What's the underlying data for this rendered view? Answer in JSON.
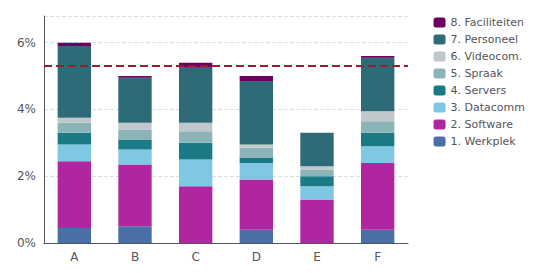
{
  "chart_data": {
    "type": "bar",
    "stacked": true,
    "categories": [
      "A",
      "B",
      "C",
      "D",
      "E",
      "F"
    ],
    "series": [
      {
        "name": "1. Werkplek",
        "color": "#4a6fa5",
        "values": [
          0.45,
          0.5,
          0.0,
          0.4,
          0.0,
          0.4
        ]
      },
      {
        "name": "2. Software",
        "color": "#b026a0",
        "values": [
          2.0,
          1.85,
          1.7,
          1.5,
          1.3,
          2.0
        ]
      },
      {
        "name": "3. Datacomm",
        "color": "#7ec8e3",
        "values": [
          0.5,
          0.45,
          0.8,
          0.5,
          0.4,
          0.5
        ]
      },
      {
        "name": "4. Servers",
        "color": "#1a7a85",
        "values": [
          0.35,
          0.3,
          0.5,
          0.15,
          0.3,
          0.4
        ]
      },
      {
        "name": "5. Spraak",
        "color": "#8ab4b8",
        "values": [
          0.3,
          0.3,
          0.35,
          0.3,
          0.2,
          0.35
        ]
      },
      {
        "name": "6. Videocom.",
        "color": "#c0c8cc",
        "values": [
          0.15,
          0.2,
          0.25,
          0.1,
          0.1,
          0.3
        ]
      },
      {
        "name": "7. Personeel",
        "color": "#2d6b78",
        "values": [
          2.15,
          1.35,
          1.65,
          1.9,
          1.0,
          1.6
        ]
      },
      {
        "name": "8. Faciliteiten",
        "color": "#6b0060",
        "values": [
          0.1,
          0.05,
          0.15,
          0.15,
          0.0,
          0.05
        ]
      }
    ],
    "ylim": [
      0,
      6.8
    ],
    "yticks": [
      {
        "value": 0,
        "label": "0%"
      },
      {
        "value": 2,
        "label": "2%"
      },
      {
        "value": 4,
        "label": "4%"
      },
      {
        "value": 6,
        "label": "6%"
      }
    ],
    "grid": true,
    "legend": "right",
    "reference_line": {
      "value": 5.3,
      "color": "#9b1c2e",
      "line_style": "dashed"
    }
  }
}
